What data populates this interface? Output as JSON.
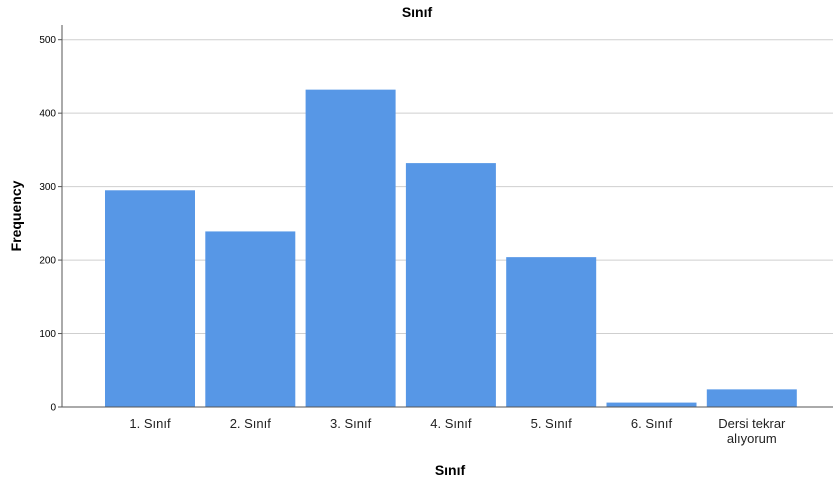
{
  "chart_data": {
    "type": "bar",
    "title": "Sınıf",
    "xlabel": "Sınıf",
    "ylabel": "Frequency",
    "categories": [
      [
        "1. Sınıf"
      ],
      [
        "2. Sınıf"
      ],
      [
        "3. Sınıf"
      ],
      [
        "4. Sınıf"
      ],
      [
        "5. Sınıf"
      ],
      [
        "6. Sınıf"
      ],
      [
        "Dersi tekrar",
        "alıyorum"
      ]
    ],
    "values": [
      295,
      239,
      432,
      332,
      204,
      6,
      24
    ],
    "ylim": [
      0,
      520
    ],
    "yticks": [
      0,
      100,
      200,
      300,
      400,
      500
    ],
    "grid": true,
    "bar_color": "#5797e6"
  }
}
